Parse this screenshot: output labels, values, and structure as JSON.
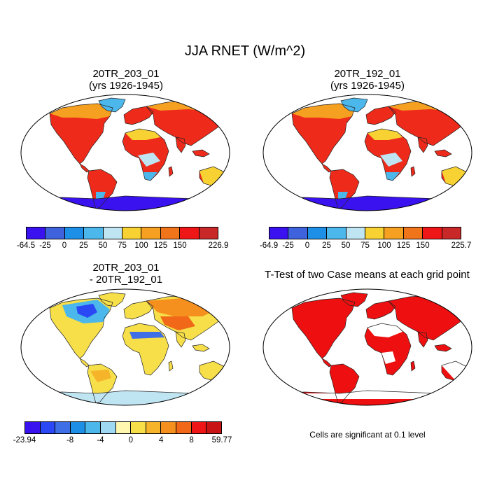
{
  "title": "JJA RNET (W/m^2)",
  "panels": [
    {
      "title_line1": "20TR_203_01",
      "title_line2": "(yrs 1926-1945)"
    },
    {
      "title_line1": "20TR_192_01",
      "title_line2": "(yrs 1926-1945)"
    },
    {
      "title_line1": "20TR_203_01",
      "title_line2": "- 20TR_192_01"
    },
    {
      "title_line1": "T-Test of two Case means at each grid point",
      "title_line2": ""
    }
  ],
  "colorbars": [
    {
      "colors": [
        "#3a12f0",
        "#3f63dc",
        "#1e8fe6",
        "#4bb7eb",
        "#bfe4f2",
        "#f7d232",
        "#f5a020",
        "#f0741a",
        "#ee1616",
        "#c82828"
      ],
      "labels": [
        "-64.5",
        "-25",
        "0",
        "25",
        "50",
        "75",
        "100",
        "125",
        "150",
        "226.9"
      ]
    },
    {
      "colors": [
        "#3a12f0",
        "#3f63dc",
        "#1e8fe6",
        "#4bb7eb",
        "#bfe4f2",
        "#f7d232",
        "#f5a020",
        "#f0741a",
        "#ee1616",
        "#c82828"
      ],
      "labels": [
        "-64.9",
        "-25",
        "0",
        "25",
        "50",
        "75",
        "100",
        "125",
        "150",
        "225.7"
      ]
    },
    {
      "colors": [
        "#3a12f0",
        "#2a48f4",
        "#3f6fe6",
        "#1e8fe6",
        "#4bb7eb",
        "#9ed8f2",
        "#fff6b0",
        "#f7df4a",
        "#f5b42a",
        "#f5901e",
        "#f06818",
        "#ee1616",
        "#c81414"
      ],
      "labels": [
        "-23.94",
        "-8",
        "-4",
        "0",
        "4",
        "8",
        "59.77"
      ],
      "label_index": [
        0,
        3,
        5,
        7,
        9,
        11,
        13
      ]
    }
  ],
  "note": "Cells are significant at 0.1 level"
}
